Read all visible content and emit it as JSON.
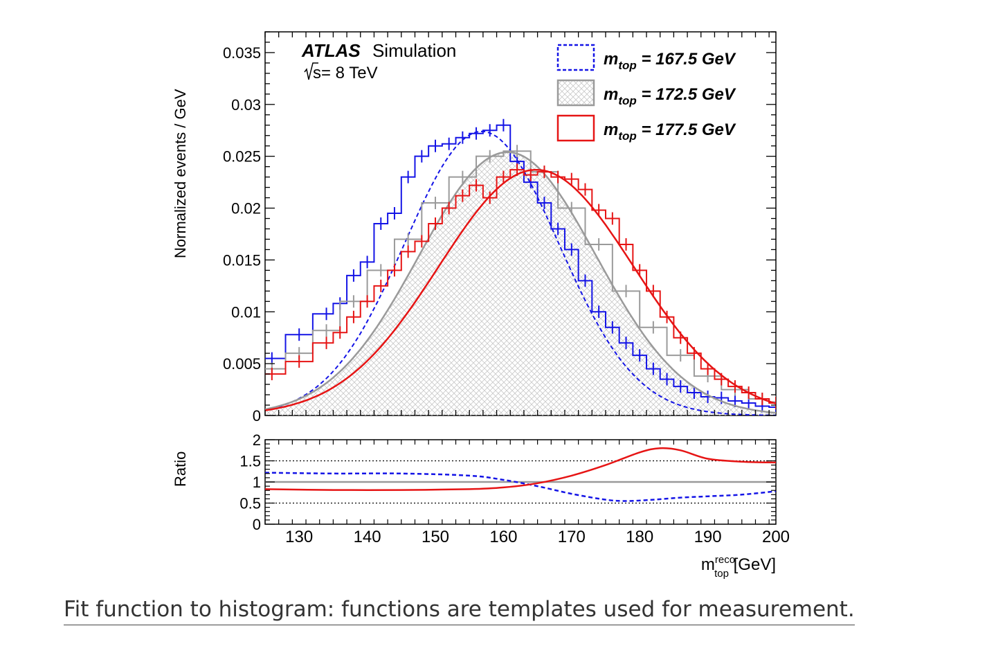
{
  "caption": "Fit function to histogram: functions are templates used for measurement.",
  "colors": {
    "blue": "#1414e6",
    "gray": "#9a9a9a",
    "red": "#e61414",
    "hatch": "#c8c8c8"
  },
  "chart_data": [
    {
      "type": "line",
      "label": {
        "experiment": "ATLAS",
        "status": "Simulation",
        "energy_prefix": "s",
        "energy_text": "= 8 TeV"
      },
      "ylabel": "Normalized events / GeV",
      "ylim": [
        0,
        0.037
      ],
      "xlim": [
        125,
        200
      ],
      "yticks": [
        0,
        0.005,
        0.01,
        0.015,
        0.02,
        0.025,
        0.03,
        0.035
      ],
      "ytick_labels": [
        "0",
        "0.005",
        "0.01",
        "0.015",
        "0.02",
        "0.025",
        "0.03",
        "0.035"
      ],
      "legend_position": "top-right",
      "legend": [
        {
          "text": "m",
          "sub": "top",
          "rest": " = 167.5 GeV",
          "style": "dashed-box"
        },
        {
          "text": "m",
          "sub": "top",
          "rest": " = 172.5 GeV",
          "style": "hatched-box"
        },
        {
          "text": "m",
          "sub": "top",
          "rest": " = 177.5 GeV",
          "style": "open-box"
        }
      ],
      "series": [
        {
          "name": "m_top = 167.5 GeV",
          "mu": 156.8,
          "sigma": 11.3,
          "peak": 0.0274,
          "points": [
            [
              126,
              0.0055
            ],
            [
              130,
              0.0078
            ],
            [
              134,
              0.0098
            ],
            [
              136,
              0.0108
            ],
            [
              138,
              0.0135
            ],
            [
              140,
              0.0148
            ],
            [
              142,
              0.0185
            ],
            [
              144,
              0.0195
            ],
            [
              146,
              0.023
            ],
            [
              148,
              0.025
            ],
            [
              150,
              0.026
            ],
            [
              152,
              0.0262
            ],
            [
              154,
              0.0268
            ],
            [
              156,
              0.0272
            ],
            [
              158,
              0.0275
            ],
            [
              160,
              0.028
            ],
            [
              162,
              0.0245
            ],
            [
              164,
              0.0225
            ],
            [
              166,
              0.0205
            ],
            [
              168,
              0.018
            ],
            [
              170,
              0.016
            ],
            [
              172,
              0.013
            ],
            [
              174,
              0.01
            ],
            [
              176,
              0.0085
            ],
            [
              178,
              0.007
            ],
            [
              180,
              0.0058
            ],
            [
              182,
              0.0045
            ],
            [
              184,
              0.0035
            ],
            [
              186,
              0.0028
            ],
            [
              188,
              0.0022
            ],
            [
              190,
              0.0018
            ],
            [
              192,
              0.0017
            ],
            [
              194,
              0.0014
            ],
            [
              196,
              0.0012
            ],
            [
              198,
              0.0009
            ],
            [
              200,
              0.0008
            ]
          ]
        },
        {
          "name": "m_top = 172.5 GeV",
          "mu": 160.6,
          "sigma": 13.0,
          "peak": 0.0254,
          "points": [
            [
              126,
              0.0045
            ],
            [
              130,
              0.006
            ],
            [
              134,
              0.0082
            ],
            [
              138,
              0.011
            ],
            [
              142,
              0.014
            ],
            [
              146,
              0.017
            ],
            [
              150,
              0.0205
            ],
            [
              154,
              0.023
            ],
            [
              158,
              0.025
            ],
            [
              162,
              0.0255
            ],
            [
              166,
              0.0235
            ],
            [
              170,
              0.02
            ],
            [
              174,
              0.0165
            ],
            [
              178,
              0.012
            ],
            [
              182,
              0.0085
            ],
            [
              186,
              0.0058
            ],
            [
              190,
              0.0038
            ],
            [
              194,
              0.0025
            ],
            [
              198,
              0.0016
            ],
            [
              200,
              0.0013
            ]
          ]
        },
        {
          "name": "m_top = 177.5 GeV",
          "mu": 164.8,
          "sigma": 14.3,
          "peak": 0.0237,
          "points": [
            [
              126,
              0.004
            ],
            [
              130,
              0.0052
            ],
            [
              134,
              0.007
            ],
            [
              136,
              0.008
            ],
            [
              138,
              0.0095
            ],
            [
              140,
              0.011
            ],
            [
              142,
              0.0125
            ],
            [
              144,
              0.014
            ],
            [
              146,
              0.0158
            ],
            [
              148,
              0.0168
            ],
            [
              150,
              0.0185
            ],
            [
              152,
              0.02
            ],
            [
              154,
              0.0212
            ],
            [
              156,
              0.0222
            ],
            [
              158,
              0.021
            ],
            [
              160,
              0.023
            ],
            [
              162,
              0.0237
            ],
            [
              164,
              0.0232
            ],
            [
              166,
              0.0235
            ],
            [
              168,
              0.023
            ],
            [
              170,
              0.0228
            ],
            [
              172,
              0.0218
            ],
            [
              174,
              0.0198
            ],
            [
              176,
              0.019
            ],
            [
              178,
              0.0165
            ],
            [
              180,
              0.014
            ],
            [
              182,
              0.012
            ],
            [
              184,
              0.0095
            ],
            [
              186,
              0.0075
            ],
            [
              188,
              0.006
            ],
            [
              190,
              0.0045
            ],
            [
              192,
              0.0035
            ],
            [
              194,
              0.0028
            ],
            [
              196,
              0.0022
            ],
            [
              198,
              0.0016
            ],
            [
              200,
              0.0012
            ]
          ]
        }
      ]
    },
    {
      "type": "line",
      "ylabel": "Ratio",
      "xlabel": "m",
      "xlabel_sup": "reco",
      "xlabel_sub": "top",
      "xlabel_unit": " [GeV]",
      "ylim": [
        0,
        2
      ],
      "xlim": [
        125,
        200
      ],
      "yticks": [
        0,
        0.5,
        1,
        1.5,
        2
      ],
      "ytick_labels": [
        "0",
        "0.5",
        "1",
        "1.5",
        "2"
      ],
      "xticks": [
        130,
        140,
        150,
        160,
        170,
        180,
        190,
        200
      ],
      "xtick_labels": [
        "130",
        "140",
        "150",
        "160",
        "170",
        "180",
        "190",
        "200"
      ],
      "reference_lines": [
        0.5,
        1.5
      ],
      "series": [
        {
          "name": "m_top = 167.5 GeV",
          "points": [
            [
              125,
              1.22
            ],
            [
              135,
              1.2
            ],
            [
              145,
              1.2
            ],
            [
              155,
              1.15
            ],
            [
              160,
              1.05
            ],
            [
              165,
              0.9
            ],
            [
              170,
              0.72
            ],
            [
              175,
              0.58
            ],
            [
              178,
              0.55
            ],
            [
              182,
              0.58
            ],
            [
              186,
              0.63
            ],
            [
              190,
              0.66
            ],
            [
              195,
              0.7
            ],
            [
              200,
              0.78
            ]
          ]
        },
        {
          "name": "m_top = 172.5 GeV",
          "points": [
            [
              125,
              1.0
            ],
            [
              200,
              1.0
            ]
          ]
        },
        {
          "name": "m_top = 177.5 GeV",
          "points": [
            [
              125,
              0.83
            ],
            [
              135,
              0.81
            ],
            [
              145,
              0.81
            ],
            [
              155,
              0.83
            ],
            [
              160,
              0.87
            ],
            [
              165,
              0.97
            ],
            [
              170,
              1.15
            ],
            [
              175,
              1.4
            ],
            [
              180,
              1.7
            ],
            [
              183,
              1.8
            ],
            [
              186,
              1.75
            ],
            [
              190,
              1.55
            ],
            [
              195,
              1.48
            ],
            [
              200,
              1.46
            ]
          ]
        }
      ]
    }
  ]
}
